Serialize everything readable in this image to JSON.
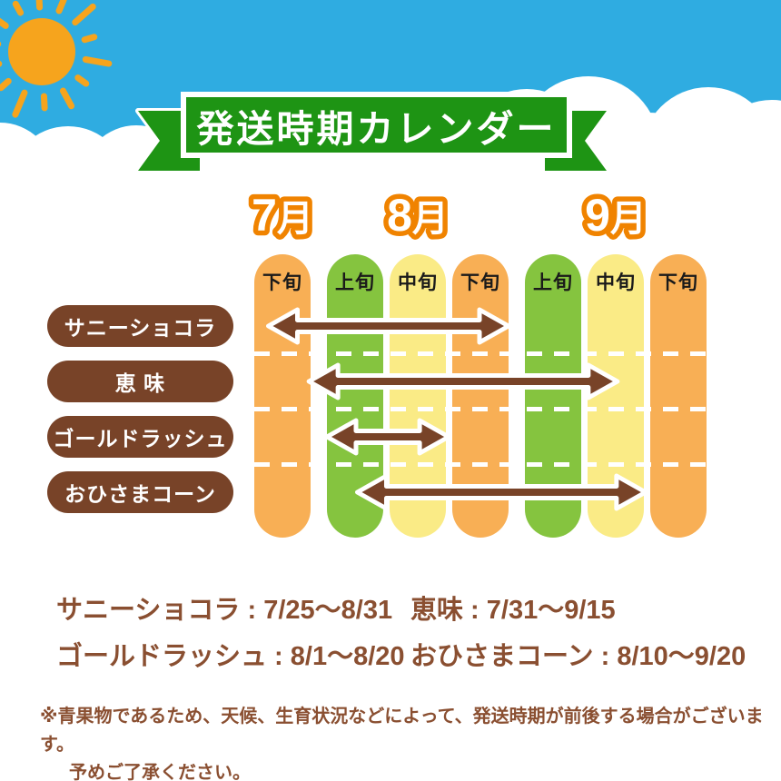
{
  "banner": {
    "title": "発送時期カレンダー"
  },
  "chart_data": {
    "type": "bar",
    "subtype": "gantt-shipping-timeline",
    "title": "発送時期カレンダー",
    "months": [
      {
        "label": "7月",
        "periods": [
          "下旬"
        ]
      },
      {
        "label": "8月",
        "periods": [
          "上旬",
          "中旬",
          "下旬"
        ]
      },
      {
        "label": "9月",
        "periods": [
          "上旬",
          "中旬",
          "下旬"
        ]
      }
    ],
    "period_colors": {
      "上旬": "#85C43F",
      "中旬": "#FAEB86",
      "下旬": "#F8AF55"
    },
    "series": [
      {
        "name": "サニーショコラ",
        "pill_label": "サニーショコラ",
        "range": "7/25〜8/31",
        "from_col": 0,
        "from_frac": 0.25,
        "to_col": 3,
        "to_frac": 1.0
      },
      {
        "name": "恵味",
        "pill_label": "恵 味",
        "range": "7/31〜9/15",
        "from_col": 0,
        "from_frac": 0.97,
        "to_col": 5,
        "to_frac": 0.53
      },
      {
        "name": "ゴールドラッシュ",
        "pill_label": "ゴールドラッシュ",
        "range": "8/1〜8/20",
        "from_col": 1,
        "from_frac": 0.0,
        "to_col": 2,
        "to_frac": 1.05
      },
      {
        "name": "おひさまコーン",
        "pill_label": "おひさまコーン",
        "range": "8/10〜9/20",
        "from_col": 1,
        "from_frac": 0.54,
        "to_col": 5,
        "to_frac": 1.03
      }
    ]
  },
  "ranges": [
    {
      "label": "サニーショコラ",
      "value": "7/25〜8/31"
    },
    {
      "label": "恵味",
      "value": "7/31〜9/15"
    },
    {
      "label": "ゴールドラッシュ",
      "value": "8/1〜8/20"
    },
    {
      "label": "おひさまコーン",
      "value": "8/10〜9/20"
    }
  ],
  "footnote": {
    "line1": "※青果物であるため、天候、生育状況などによって、発送時期が前後する場合がございます。",
    "line2": "予めご了承ください。"
  },
  "colors": {
    "sky": "#2FACE1",
    "sun": "#F6A41D",
    "ribbon_green": "#1E9414",
    "column_orange": "#F8AF55",
    "column_green": "#85C43F",
    "column_yellow": "#FAEB86",
    "brown": "#784328",
    "text_brown": "#8A4F31",
    "month_outline_orange": "#F08300"
  }
}
